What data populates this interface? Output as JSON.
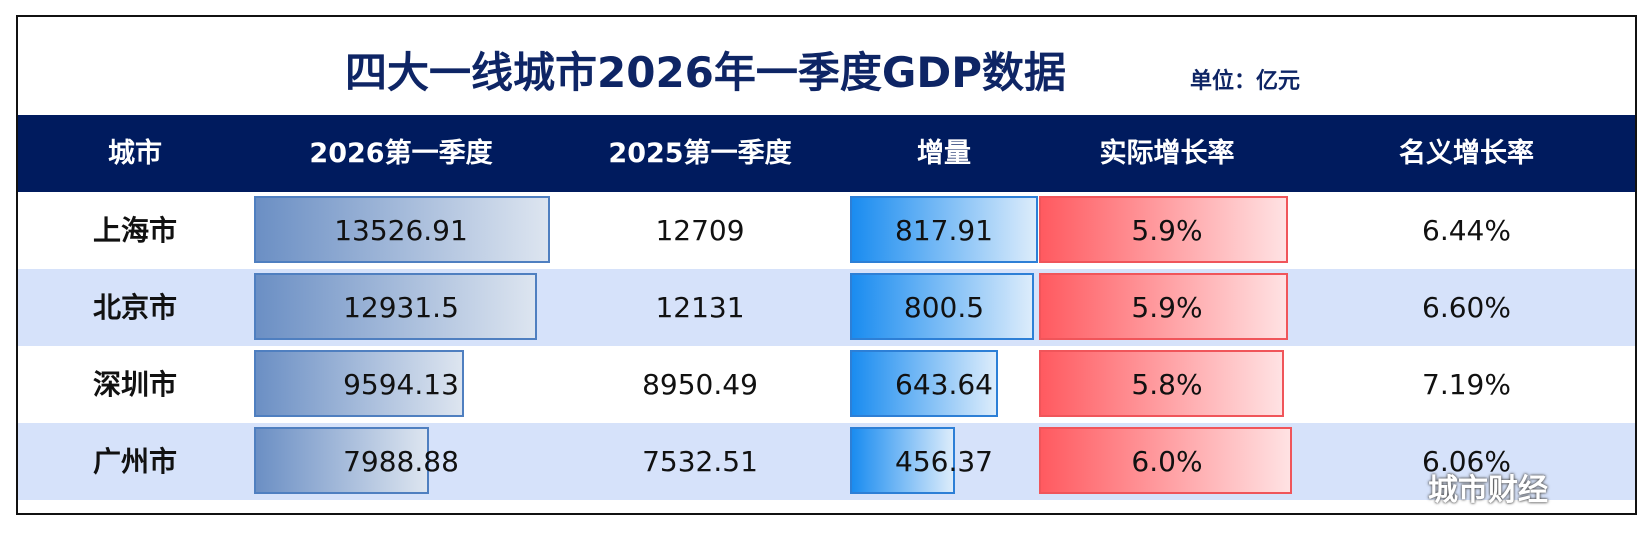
{
  "title": "四大一线城市2026年一季度GDP数据",
  "unit": "单位：亿元",
  "watermark": "城市财经",
  "colors": {
    "header_bg": "#001b5e",
    "title": "#0e2565",
    "alt_row": "#d6e2fa",
    "bar_2026": "#6b8fc4",
    "bar_increment": "#1a8cf0",
    "bar_real_growth": "#ff5a60"
  },
  "chart_data": {
    "type": "table",
    "columns": [
      "城市",
      "2026第一季度",
      "2025第一季度",
      "增量",
      "实际增长率",
      "名义增长率"
    ],
    "rows": [
      {
        "city": "上海市",
        "q1_2026": "13526.91",
        "q1_2025": "12709",
        "increment": "817.91",
        "real_growth": "5.9%",
        "nominal_growth": "6.44%"
      },
      {
        "city": "北京市",
        "q1_2026": "12931.5",
        "q1_2025": "12131",
        "increment": "800.5",
        "real_growth": "5.9%",
        "nominal_growth": "6.60%"
      },
      {
        "city": "深圳市",
        "q1_2026": "9594.13",
        "q1_2025": "8950.49",
        "increment": "643.64",
        "real_growth": "5.8%",
        "nominal_growth": "7.19%"
      },
      {
        "city": "广州市",
        "q1_2026": "7988.88",
        "q1_2025": "7532.51",
        "increment": "456.37",
        "real_growth": "6.0%",
        "nominal_growth": "6.06%"
      }
    ]
  }
}
